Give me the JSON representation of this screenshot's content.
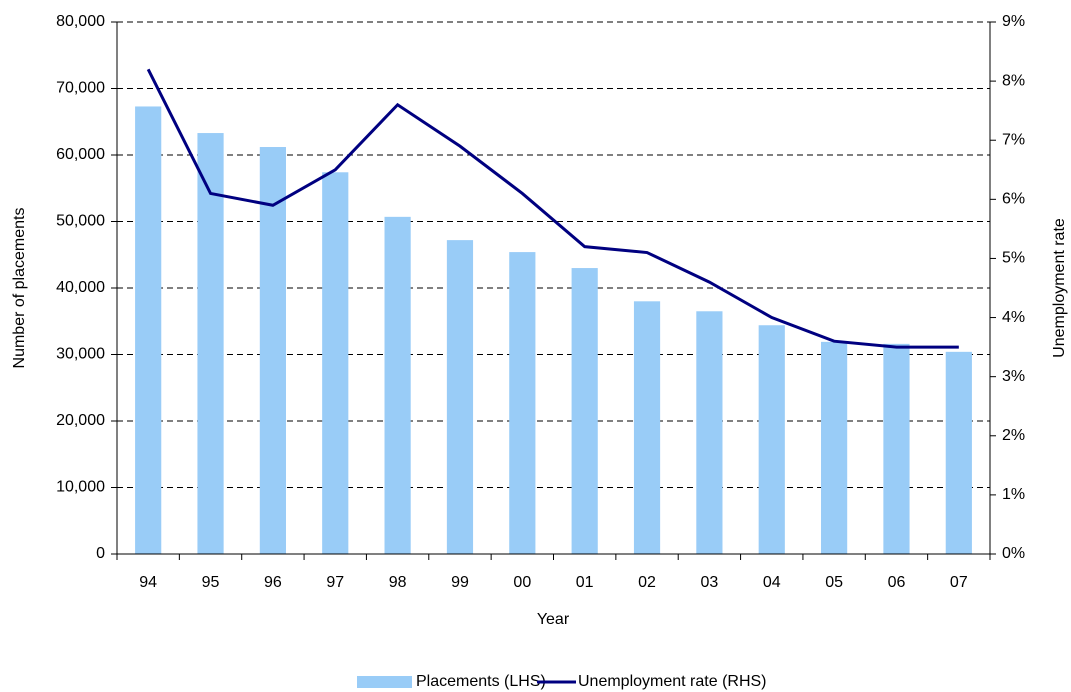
{
  "chart_data": {
    "type": "bar_line",
    "categories": [
      "94",
      "95",
      "96",
      "97",
      "98",
      "99",
      "00",
      "01",
      "02",
      "03",
      "04",
      "05",
      "06",
      "07"
    ],
    "series": [
      {
        "name": "Placements (LHS)",
        "type": "bar",
        "color": "#99ccf7",
        "values": [
          67300,
          63300,
          61200,
          57400,
          50700,
          47200,
          45400,
          43000,
          38000,
          36500,
          34400,
          31900,
          31600,
          30400
        ]
      },
      {
        "name": "Unemployment rate (RHS)",
        "type": "line",
        "axis": "y2",
        "color": "#000080",
        "values": [
          8.2,
          6.1,
          5.9,
          6.5,
          7.6,
          6.9,
          6.1,
          5.2,
          5.1,
          4.6,
          4.0,
          3.6,
          3.5,
          3.5
        ]
      }
    ],
    "x_label": "Year",
    "y_label": "Number of placements",
    "y2_label": "Unemployment rate",
    "ylim": [
      0,
      80000
    ],
    "yticks": [
      0,
      {
        "value": 10000,
        "label": "10,000"
      },
      {
        "value": 20000,
        "label": "20,000"
      },
      {
        "value": 30000,
        "label": "30,000"
      },
      {
        "value": 40000,
        "label": "40,000"
      },
      {
        "value": 50000,
        "label": "50,000"
      },
      {
        "value": 60000,
        "label": "60,000"
      },
      {
        "value": 70000,
        "label": "70,000"
      },
      {
        "value": 80000,
        "label": "80,000"
      }
    ],
    "y2lim": [
      0,
      9
    ],
    "y2ticks": [
      {
        "value": 0,
        "label": "0%"
      },
      {
        "value": 1,
        "label": "1%"
      },
      {
        "value": 2,
        "label": "2%"
      },
      {
        "value": 3,
        "label": "3%"
      },
      {
        "value": 4,
        "label": "4%"
      },
      {
        "value": 5,
        "label": "5%"
      },
      {
        "value": 6,
        "label": "6%"
      },
      {
        "value": 7,
        "label": "7%"
      },
      {
        "value": 8,
        "label": "8%"
      },
      {
        "value": 9,
        "label": "9%"
      }
    ],
    "grid": true,
    "legend": "bottom"
  }
}
